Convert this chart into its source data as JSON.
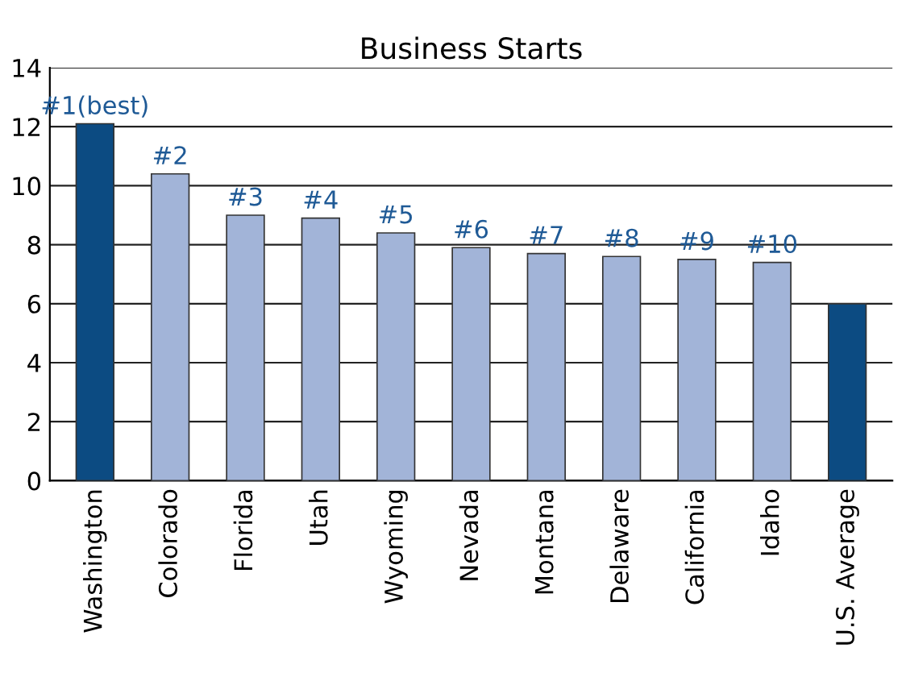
{
  "chart_data": {
    "type": "bar",
    "title": "Business Starts",
    "categories": [
      "Washington",
      "Colorado",
      "Florida",
      "Utah",
      "Wyoming",
      "Nevada",
      "Montana",
      "Delaware",
      "California",
      "Idaho",
      "U.S. Average"
    ],
    "values": [
      12.1,
      10.4,
      9.0,
      8.9,
      8.4,
      7.9,
      7.7,
      7.6,
      7.5,
      7.4,
      6.0
    ],
    "colors": [
      "#0c4b82",
      "#a2b4d8",
      "#a2b4d8",
      "#a2b4d8",
      "#a2b4d8",
      "#a2b4d8",
      "#a2b4d8",
      "#a2b4d8",
      "#a2b4d8",
      "#a2b4d8",
      "#0c4b82"
    ],
    "ylim": [
      0,
      14
    ],
    "yticks": [
      0,
      2,
      4,
      6,
      8,
      10,
      12,
      14
    ],
    "grid": "y",
    "annotations": [
      {
        "text": "#1(best)",
        "x": "Washington",
        "y": 12.1
      },
      {
        "text": "#2",
        "x": "Colorado",
        "y": 10.4
      },
      {
        "text": "#3",
        "x": "Florida",
        "y": 9.0
      },
      {
        "text": "#4",
        "x": "Utah",
        "y": 8.9
      },
      {
        "text": "#5",
        "x": "Wyoming",
        "y": 8.4
      },
      {
        "text": "#6",
        "x": "Nevada",
        "y": 7.9
      },
      {
        "text": "#7",
        "x": "Montana",
        "y": 7.7
      },
      {
        "text": "#8",
        "x": "Delaware",
        "y": 7.6
      },
      {
        "text": "#9",
        "x": "California",
        "y": 7.5
      },
      {
        "text": "#10",
        "x": "Idaho",
        "y": 7.4
      }
    ]
  }
}
